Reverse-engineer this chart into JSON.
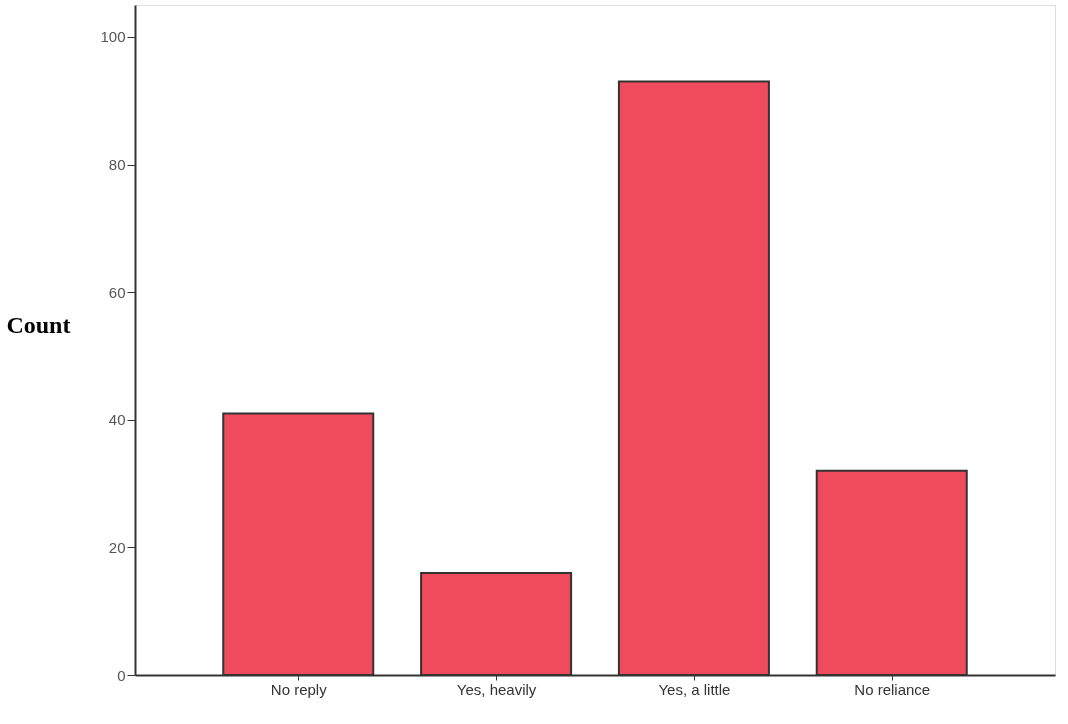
{
  "chart_data": {
    "type": "bar",
    "ylabel": "Count",
    "categories": [
      "No reply",
      "Yes, heavily",
      "Yes, a little",
      "No reliance"
    ],
    "values": [
      41,
      16,
      93,
      32
    ],
    "color": "#f04b5c",
    "ylim": [
      0,
      105
    ],
    "yticks": [
      0,
      20,
      40,
      60,
      80,
      100
    ],
    "grid": false
  }
}
